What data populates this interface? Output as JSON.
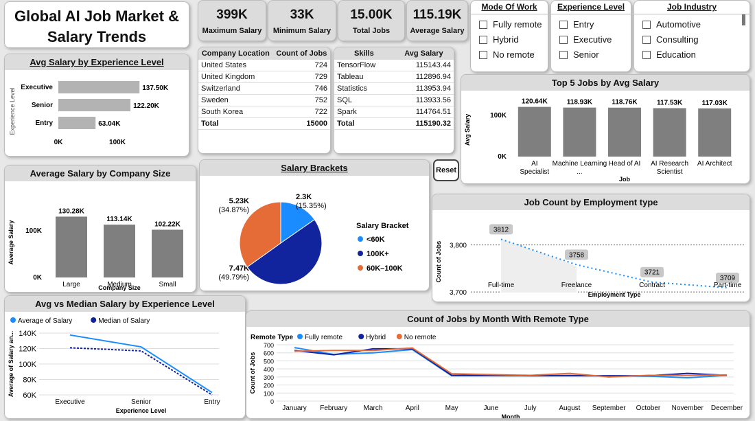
{
  "title": "Global AI Job Market & Salary Trends",
  "kpis": [
    {
      "value": "399K",
      "label": "Maximum Salary"
    },
    {
      "value": "33K",
      "label": "Minimum Salary"
    },
    {
      "value": "15.00K",
      "label": "Total Jobs"
    },
    {
      "value": "115.19K",
      "label": "Average Salary"
    }
  ],
  "slicers": {
    "mode_of_work": {
      "title": "Mode Of Work",
      "options": [
        "Fully remote",
        "Hybrid",
        "No remote"
      ]
    },
    "experience_level": {
      "title": "Experience Level",
      "options": [
        "Entry",
        "Executive",
        "Senior"
      ]
    },
    "job_industry": {
      "title": "Job Industry",
      "options": [
        "Automotive",
        "Consulting",
        "Education"
      ]
    }
  },
  "location_table": {
    "headers": [
      "Company Location",
      "Count of Jobs"
    ],
    "rows": [
      [
        "United States",
        "724"
      ],
      [
        "United Kingdom",
        "729"
      ],
      [
        "Switzerland",
        "746"
      ],
      [
        "Sweden",
        "752"
      ],
      [
        "South Korea",
        "722"
      ]
    ],
    "total_label": "Total",
    "total_value": "15000"
  },
  "skills_table": {
    "headers": [
      "Skills",
      "Avg Salary"
    ],
    "rows": [
      [
        "TensorFlow",
        "115143.44"
      ],
      [
        "Tableau",
        "112896.94"
      ],
      [
        "Statistics",
        "113953.94"
      ],
      [
        "SQL",
        "113933.56"
      ],
      [
        "Spark",
        "114764.51"
      ]
    ],
    "total_label": "Total",
    "total_value": "115190.32"
  },
  "reset_label": "Reset",
  "chart_data": [
    {
      "id": "exp",
      "type": "bar",
      "orientation": "horizontal",
      "title": "Avg Salary by Experience Level",
      "ylabel": "Experience Level",
      "categories": [
        "Executive",
        "Senior",
        "Entry"
      ],
      "values": [
        137.5,
        122.2,
        63.04
      ],
      "data_labels": [
        "137.50K",
        "122.20K",
        "63.04K"
      ],
      "xlim": [
        0,
        200
      ],
      "ticks": [
        "0K",
        "100K"
      ],
      "color": "#b3b3b3"
    },
    {
      "id": "size",
      "type": "bar",
      "title": "Average Salary by Company Size",
      "xlabel": "Company Size",
      "ylabel": "Average Salary",
      "categories": [
        "Large",
        "Medium",
        "Small"
      ],
      "values": [
        130.28,
        113.14,
        102.22
      ],
      "data_labels": [
        "130.28K",
        "113.14K",
        "102.22K"
      ],
      "ylim": [
        0,
        150
      ],
      "ticks": [
        "0K",
        "100K"
      ],
      "color": "#7f7f7f"
    },
    {
      "id": "brackets",
      "type": "pie",
      "title": "Salary Brackets",
      "legend_title": "Salary Bracket",
      "slices": [
        {
          "name": "<60K",
          "value": 2.3,
          "label": "2.3K",
          "pct": "(15.35%)",
          "color": "#1a8cff"
        },
        {
          "name": "100K+",
          "value": 7.47,
          "label": "7.47K",
          "pct": "(49.79%)",
          "color": "#12239e"
        },
        {
          "name": "60K–100K",
          "value": 5.23,
          "label": "5.23K",
          "pct": "(34.87%)",
          "color": "#e66c37"
        }
      ]
    },
    {
      "id": "top5",
      "type": "bar",
      "title": "Top 5 Jobs by Avg Salary",
      "xlabel": "Job",
      "ylabel": "Avg Salary",
      "categories": [
        "AI Specialist",
        "Machine Learning ...",
        "Head of AI",
        "AI Research Scientist",
        "AI Architect"
      ],
      "values": [
        120.64,
        118.93,
        118.76,
        117.53,
        117.03
      ],
      "data_labels": [
        "120.64K",
        "118.93K",
        "118.76K",
        "117.53K",
        "117.03K"
      ],
      "ylim": [
        0,
        130
      ],
      "ticks": [
        "0K",
        "100K"
      ],
      "color": "#7f7f7f"
    },
    {
      "id": "emp",
      "type": "area",
      "title": "Job Count by Employment type",
      "xlabel": "Employment Type",
      "ylabel": "Count of Jobs",
      "categories": [
        "Full-time",
        "Freelance",
        "Contract",
        "Part-time"
      ],
      "values": [
        3812,
        3758,
        3721,
        3709
      ],
      "ylim": [
        3690,
        3830
      ],
      "ticks": [
        3700,
        3800
      ],
      "tick_labels": [
        "3,700",
        "3,800"
      ],
      "color": "#118dff"
    },
    {
      "id": "avgmed",
      "type": "line",
      "title": "Avg vs Median Salary by Experience Level",
      "xlabel": "Experience Level",
      "ylabel": "Average of Salary an...",
      "categories": [
        "Executive",
        "Senior",
        "Entry"
      ],
      "series": [
        {
          "name": "Average of Salary",
          "values": [
            137.5,
            122.2,
            63.04
          ],
          "color": "#1a8cff"
        },
        {
          "name": "Median of Salary",
          "values": [
            121,
            117,
            60
          ],
          "color": "#12239e"
        }
      ],
      "ylim": [
        60,
        140
      ],
      "ticks": [
        60,
        80,
        100,
        120,
        140
      ],
      "tick_labels": [
        "60K",
        "80K",
        "100K",
        "120K",
        "140K"
      ]
    },
    {
      "id": "monthly",
      "type": "line",
      "title": "Count of Jobs by Month With Remote Type",
      "xlabel": "Month",
      "ylabel": "Count of Jobs",
      "legend_title": "Remote Type",
      "categories": [
        "January",
        "February",
        "March",
        "April",
        "May",
        "June",
        "July",
        "August",
        "September",
        "October",
        "November",
        "December"
      ],
      "series": [
        {
          "name": "Fully remote",
          "values": [
            665,
            580,
            600,
            640,
            315,
            315,
            315,
            320,
            310,
            310,
            290,
            320
          ],
          "color": "#1a8cff"
        },
        {
          "name": "Hybrid",
          "values": [
            630,
            575,
            650,
            650,
            320,
            320,
            315,
            315,
            315,
            315,
            345,
            320
          ],
          "color": "#12239e"
        },
        {
          "name": "No remote",
          "values": [
            620,
            630,
            630,
            660,
            340,
            330,
            320,
            345,
            300,
            320,
            320,
            325
          ],
          "color": "#e66c37"
        }
      ],
      "ylim": [
        0,
        700
      ],
      "ticks": [
        0,
        100,
        200,
        300,
        400,
        500,
        600,
        700
      ]
    }
  ]
}
